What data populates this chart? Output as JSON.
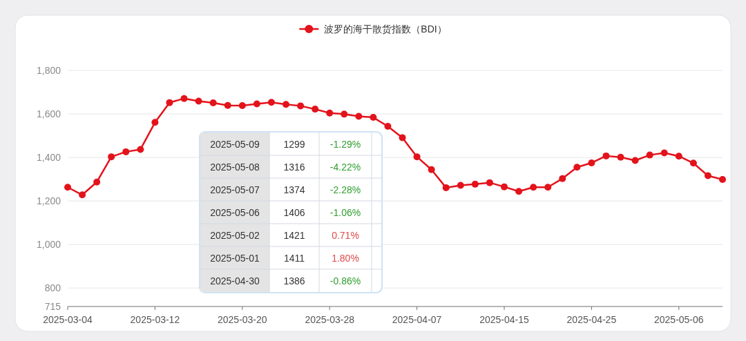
{
  "chart_data": {
    "type": "line",
    "categories": [
      "2025-03-04",
      null,
      null,
      null,
      null,
      null,
      "2025-03-12",
      null,
      null,
      null,
      null,
      null,
      "2025-03-20",
      null,
      null,
      null,
      null,
      null,
      "2025-03-28",
      null,
      null,
      null,
      null,
      null,
      "2025-04-07",
      null,
      null,
      null,
      null,
      null,
      "2025-04-15",
      null,
      null,
      null,
      null,
      null,
      "2025-04-25",
      null,
      null,
      null,
      null,
      null,
      "2025-05-06",
      null,
      null,
      null
    ],
    "series": [
      {
        "name": "波罗的海干散货指数（BDI）",
        "color": "#e3131b",
        "values": [
          1263,
          1228,
          1287,
          1403,
          1426,
          1437,
          1561,
          1652,
          1671,
          1659,
          1651,
          1639,
          1638,
          1646,
          1653,
          1644,
          1637,
          1622,
          1604,
          1599,
          1589,
          1584,
          1543,
          1491,
          1403,
          1344,
          1261,
          1272,
          1277,
          1284,
          1265,
          1244,
          1263,
          1263,
          1303,
          1355,
          1375,
          1407,
          1401,
          1386,
          1411,
          1421,
          1406,
          1374,
          1316,
          1299
        ]
      }
    ],
    "ylim": [
      715,
      1800
    ],
    "yticks": [
      715,
      800,
      {
        "value": 1000,
        "label": "1,000"
      },
      {
        "value": 1200,
        "label": "1,200"
      },
      {
        "value": 1400,
        "label": "1,400"
      },
      {
        "value": 1600,
        "label": "1,600"
      },
      {
        "value": 1800,
        "label": "1,800"
      }
    ],
    "grid": "y",
    "legend": "top",
    "marker": "circle",
    "line_style": "solid",
    "annotations": [
      "2025-05-09",
      "1299",
      "-1.29%",
      "2025-05-08",
      "1316",
      "-4.22%",
      "2025-05-07",
      "1374",
      "-2.28%",
      "2025-05-06",
      "1406",
      "-1.06%",
      "2025-05-02",
      "1421",
      "0.71%",
      "2025-05-01",
      "1411",
      "1.80%",
      "2025-04-30",
      "1386",
      "-0.86%"
    ]
  }
}
